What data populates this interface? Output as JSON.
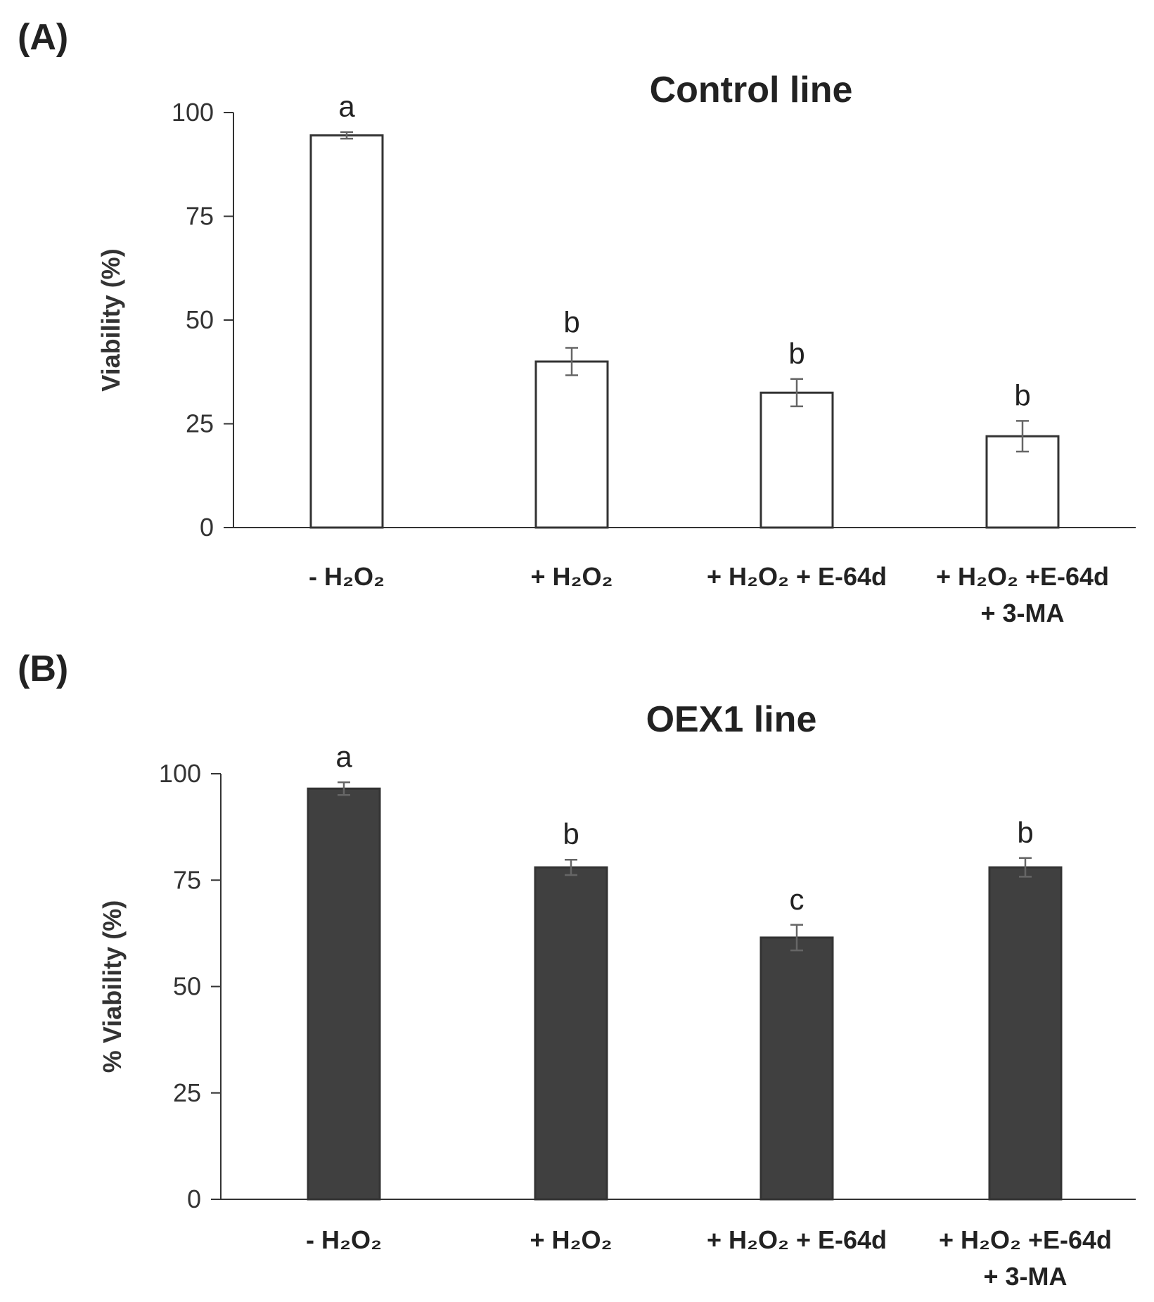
{
  "chart_data": [
    {
      "panel": "(A)",
      "title": "Control line",
      "type": "bar",
      "xlabel": "",
      "ylabel": "Viability (%)",
      "ylim": [
        0,
        100
      ],
      "yticks": [
        "0",
        "25",
        "50",
        "75",
        "100"
      ],
      "categories": [
        "- H₂O₂",
        "+ H₂O₂",
        "+ H₂O₂ + E-64d",
        "+ H₂O₂ +E-64d + 3-MA"
      ],
      "category_lines": [
        [
          "- H₂O₂"
        ],
        [
          "+ H₂O₂"
        ],
        [
          "+ H₂O₂ + E-64d"
        ],
        [
          "+ H₂O₂ +E-64d",
          "+ 3-MA"
        ]
      ],
      "values": [
        94.5,
        40,
        32.5,
        22
      ],
      "errors": [
        0.8,
        3.3,
        3.3,
        3.7
      ],
      "significance": [
        "a",
        "b",
        "b",
        "b"
      ],
      "bar_fill": "#ffffff",
      "bar_stroke": "#333333"
    },
    {
      "panel": "(B)",
      "title": "OEX1 line",
      "type": "bar",
      "xlabel": "",
      "ylabel": "% Viability (%)",
      "ylim": [
        0,
        100
      ],
      "yticks": [
        "0",
        "25",
        "50",
        "75",
        "100"
      ],
      "categories": [
        "- H₂O₂",
        "+ H₂O₂",
        "+ H₂O₂ + E-64d",
        "+ H₂O₂ +E-64d + 3-MA"
      ],
      "category_lines": [
        [
          "- H₂O₂"
        ],
        [
          "+ H₂O₂"
        ],
        [
          "+ H₂O₂ + E-64d"
        ],
        [
          "+ H₂O₂ +E-64d",
          "+ 3-MA"
        ]
      ],
      "values": [
        96.5,
        78,
        61.5,
        78
      ],
      "errors": [
        1.5,
        1.8,
        3.0,
        2.2
      ],
      "significance": [
        "a",
        "b",
        "c",
        "b"
      ],
      "bar_fill": "#404040",
      "bar_stroke": "#333333"
    }
  ]
}
